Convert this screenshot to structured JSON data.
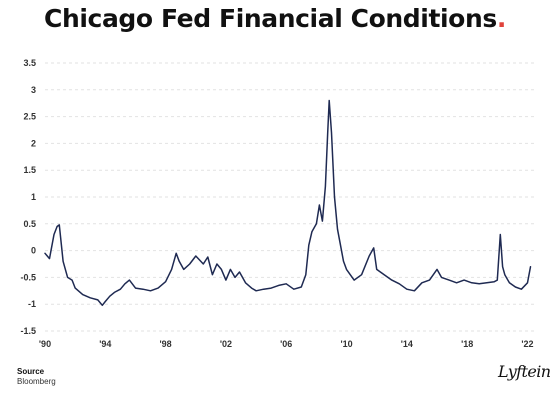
{
  "title": "Chicago Fed Financial Conditions",
  "title_dot": ".",
  "source_label": "Source",
  "source_name": "Bloomberg",
  "brand": "Lyftein",
  "colors": {
    "line": "#1f2a52",
    "grid": "#e2e2e2",
    "accent": "#e0433b"
  },
  "chart_data": {
    "type": "line",
    "title": "Chicago Fed Financial Conditions",
    "xlabel": "",
    "ylabel": "",
    "xlim": [
      1990,
      2022.5
    ],
    "ylim": [
      -1.5,
      3.5
    ],
    "y_ticks": [
      3.5,
      3,
      2.5,
      2,
      1.5,
      1,
      0.5,
      0,
      -0.5,
      -1,
      -1.5
    ],
    "y_tick_labels": [
      "3.5",
      "3",
      "2.5",
      "2",
      "1.5",
      "1",
      "0.5",
      "0",
      "-0.5",
      "-1",
      "-1.5"
    ],
    "x_ticks": [
      1990,
      1994,
      1998,
      2002,
      2006,
      2010,
      2014,
      2018,
      2022
    ],
    "x_tick_labels": [
      "'90",
      "'94",
      "'98",
      "'02",
      "'06",
      "'10",
      "'14",
      "'18",
      "'22"
    ],
    "grid": "horizontal",
    "series": [
      {
        "x": [
          1990.0,
          1990.3,
          1990.6,
          1990.8,
          1990.95,
          1991.2,
          1991.5,
          1991.8,
          1992.0,
          1992.5,
          1993.0,
          1993.5,
          1993.8,
          1994.0,
          1994.3,
          1994.6,
          1995.0,
          1995.3,
          1995.6,
          1996.0,
          1996.5,
          1997.0,
          1997.5,
          1998.0,
          1998.4,
          1998.7,
          1998.9,
          1999.2,
          1999.6,
          2000.0,
          2000.5,
          2000.8,
          2001.1,
          2001.4,
          2001.7,
          2002.0,
          2002.3,
          2002.6,
          2002.9,
          2003.3,
          2003.7,
          2004.0,
          2004.5,
          2005.0,
          2005.5,
          2006.0,
          2006.5,
          2007.0,
          2007.3,
          2007.5,
          2007.7,
          2008.0,
          2008.2,
          2008.4,
          2008.6,
          2008.75,
          2008.85,
          2009.0,
          2009.2,
          2009.4,
          2009.6,
          2009.8,
          2010.0,
          2010.5,
          2011.0,
          2011.5,
          2011.8,
          2012.0,
          2012.5,
          2013.0,
          2013.5,
          2014.0,
          2014.5,
          2015.0,
          2015.5,
          2016.0,
          2016.3,
          2016.8,
          2017.3,
          2017.8,
          2018.3,
          2018.8,
          2019.3,
          2019.8,
          2020.0,
          2020.2,
          2020.35,
          2020.5,
          2020.8,
          2021.2,
          2021.6,
          2022.0,
          2022.2
        ],
        "y": [
          -0.05,
          -0.15,
          0.3,
          0.45,
          0.48,
          -0.2,
          -0.5,
          -0.55,
          -0.7,
          -0.82,
          -0.88,
          -0.92,
          -1.02,
          -0.95,
          -0.85,
          -0.78,
          -0.72,
          -0.62,
          -0.55,
          -0.7,
          -0.72,
          -0.75,
          -0.7,
          -0.58,
          -0.35,
          -0.05,
          -0.2,
          -0.35,
          -0.25,
          -0.1,
          -0.25,
          -0.12,
          -0.45,
          -0.25,
          -0.35,
          -0.55,
          -0.35,
          -0.5,
          -0.4,
          -0.6,
          -0.7,
          -0.75,
          -0.72,
          -0.7,
          -0.65,
          -0.62,
          -0.72,
          -0.68,
          -0.45,
          0.1,
          0.35,
          0.5,
          0.85,
          0.55,
          1.2,
          2.2,
          2.8,
          2.2,
          1.0,
          0.4,
          0.1,
          -0.2,
          -0.35,
          -0.55,
          -0.45,
          -0.1,
          0.05,
          -0.35,
          -0.45,
          -0.55,
          -0.62,
          -0.72,
          -0.75,
          -0.6,
          -0.55,
          -0.35,
          -0.5,
          -0.55,
          -0.6,
          -0.55,
          -0.6,
          -0.62,
          -0.6,
          -0.58,
          -0.55,
          0.3,
          -0.3,
          -0.45,
          -0.6,
          -0.68,
          -0.72,
          -0.6,
          -0.3
        ]
      }
    ]
  }
}
